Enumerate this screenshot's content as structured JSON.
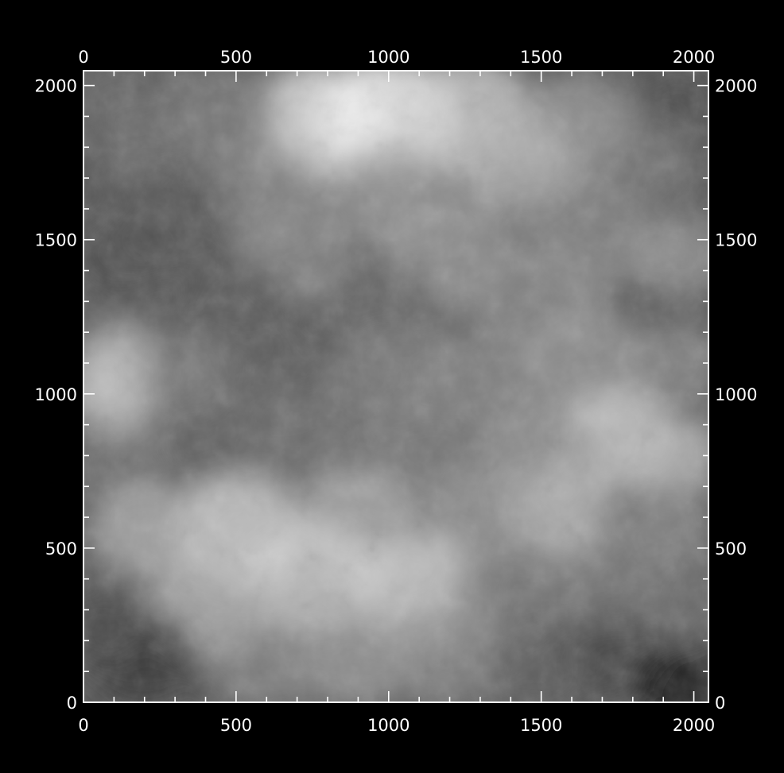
{
  "chart_data": {
    "type": "heatmap",
    "title": "",
    "xlabel": "",
    "ylabel": "",
    "xlim": [
      0,
      2048
    ],
    "ylim": [
      0,
      2048
    ],
    "colormap": "grayscale",
    "colors": {
      "background": "#000000",
      "axis": "#ffffff",
      "low": "#000000",
      "high": "#ffffff"
    },
    "x_major_ticks": [
      0,
      500,
      1000,
      1500,
      2000
    ],
    "y_major_ticks": [
      0,
      500,
      1000,
      1500,
      2000
    ],
    "x_tick_labels": [
      "0",
      "500",
      "1000",
      "1500",
      "2000"
    ],
    "y_tick_labels": [
      "0",
      "500",
      "1000",
      "1500",
      "2000"
    ],
    "minor_tick_step": 100,
    "blobs": [
      {
        "x": 1000,
        "y": 1900,
        "r": 230,
        "v": 1.0
      },
      {
        "x": 780,
        "y": 1880,
        "r": 230,
        "v": 0.95
      },
      {
        "x": 1250,
        "y": 1900,
        "r": 230,
        "v": 0.82
      },
      {
        "x": 450,
        "y": 1900,
        "r": 200,
        "v": 0.5
      },
      {
        "x": 120,
        "y": 1950,
        "r": 160,
        "v": 0.42
      },
      {
        "x": 180,
        "y": 1800,
        "r": 140,
        "v": 0.44
      },
      {
        "x": 1950,
        "y": 1950,
        "r": 140,
        "v": 0.3
      },
      {
        "x": 1600,
        "y": 1850,
        "r": 220,
        "v": 0.62
      },
      {
        "x": 1850,
        "y": 1750,
        "r": 160,
        "v": 0.48
      },
      {
        "x": 1400,
        "y": 1750,
        "r": 200,
        "v": 0.7
      },
      {
        "x": 1000,
        "y": 1650,
        "r": 200,
        "v": 0.62
      },
      {
        "x": 600,
        "y": 1650,
        "r": 200,
        "v": 0.55
      },
      {
        "x": 300,
        "y": 1550,
        "r": 200,
        "v": 0.35
      },
      {
        "x": 120,
        "y": 1450,
        "r": 160,
        "v": 0.32
      },
      {
        "x": 700,
        "y": 1450,
        "r": 200,
        "v": 0.55
      },
      {
        "x": 1200,
        "y": 1450,
        "r": 220,
        "v": 0.62
      },
      {
        "x": 1650,
        "y": 1500,
        "r": 220,
        "v": 0.55
      },
      {
        "x": 1950,
        "y": 1450,
        "r": 160,
        "v": 0.6
      },
      {
        "x": 1500,
        "y": 1300,
        "r": 220,
        "v": 0.55
      },
      {
        "x": 1000,
        "y": 1250,
        "r": 200,
        "v": 0.42
      },
      {
        "x": 500,
        "y": 1250,
        "r": 200,
        "v": 0.36
      },
      {
        "x": 120,
        "y": 1100,
        "r": 160,
        "v": 0.72
      },
      {
        "x": 100,
        "y": 1000,
        "r": 160,
        "v": 0.78
      },
      {
        "x": 350,
        "y": 1050,
        "r": 180,
        "v": 0.5
      },
      {
        "x": 650,
        "y": 1050,
        "r": 200,
        "v": 0.38
      },
      {
        "x": 1000,
        "y": 1050,
        "r": 200,
        "v": 0.5
      },
      {
        "x": 1300,
        "y": 1050,
        "r": 200,
        "v": 0.55
      },
      {
        "x": 1650,
        "y": 1100,
        "r": 220,
        "v": 0.6
      },
      {
        "x": 1950,
        "y": 1100,
        "r": 160,
        "v": 0.55
      },
      {
        "x": 1750,
        "y": 850,
        "r": 200,
        "v": 0.82
      },
      {
        "x": 1950,
        "y": 800,
        "r": 160,
        "v": 0.72
      },
      {
        "x": 1500,
        "y": 800,
        "r": 200,
        "v": 0.62
      },
      {
        "x": 1100,
        "y": 850,
        "r": 200,
        "v": 0.5
      },
      {
        "x": 700,
        "y": 850,
        "r": 200,
        "v": 0.45
      },
      {
        "x": 350,
        "y": 800,
        "r": 200,
        "v": 0.4
      },
      {
        "x": 120,
        "y": 750,
        "r": 160,
        "v": 0.48
      },
      {
        "x": 1550,
        "y": 600,
        "r": 180,
        "v": 0.75
      },
      {
        "x": 1300,
        "y": 600,
        "r": 200,
        "v": 0.62
      },
      {
        "x": 900,
        "y": 600,
        "r": 200,
        "v": 0.7
      },
      {
        "x": 500,
        "y": 550,
        "r": 220,
        "v": 0.85
      },
      {
        "x": 200,
        "y": 550,
        "r": 180,
        "v": 0.7
      },
      {
        "x": 1900,
        "y": 550,
        "r": 160,
        "v": 0.55
      },
      {
        "x": 750,
        "y": 400,
        "r": 220,
        "v": 0.82
      },
      {
        "x": 1100,
        "y": 350,
        "r": 220,
        "v": 0.85
      },
      {
        "x": 1400,
        "y": 350,
        "r": 200,
        "v": 0.5
      },
      {
        "x": 1750,
        "y": 350,
        "r": 180,
        "v": 0.5
      },
      {
        "x": 1950,
        "y": 350,
        "r": 160,
        "v": 0.45
      },
      {
        "x": 400,
        "y": 300,
        "r": 200,
        "v": 0.72
      },
      {
        "x": 900,
        "y": 150,
        "r": 200,
        "v": 0.62
      },
      {
        "x": 1200,
        "y": 150,
        "r": 200,
        "v": 0.55
      },
      {
        "x": 600,
        "y": 120,
        "r": 180,
        "v": 0.55
      },
      {
        "x": 200,
        "y": 150,
        "r": 180,
        "v": 0.2
      },
      {
        "x": 50,
        "y": 250,
        "r": 140,
        "v": 0.3
      },
      {
        "x": 1500,
        "y": 120,
        "r": 180,
        "v": 0.38
      },
      {
        "x": 1750,
        "y": 150,
        "r": 180,
        "v": 0.28
      },
      {
        "x": 1950,
        "y": 60,
        "r": 140,
        "v": 0.05
      }
    ],
    "base_level": 0.35
  }
}
